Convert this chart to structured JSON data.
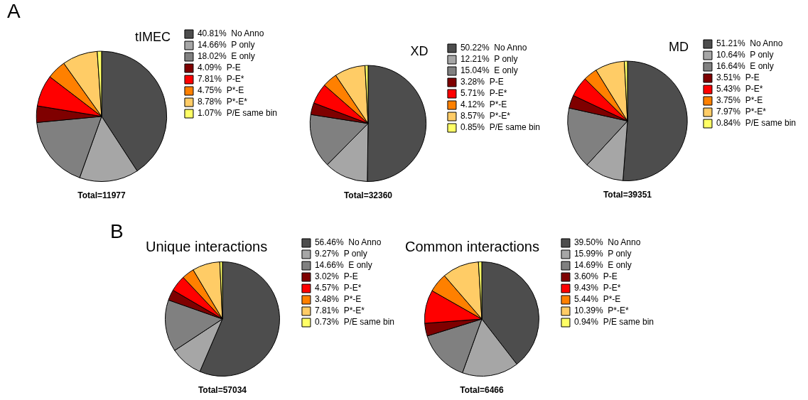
{
  "chart_data": [
    {
      "type": "pie",
      "title": "tIMEC",
      "categories": [
        "No Anno",
        "P only",
        "E only",
        "P-E",
        "P-E*",
        "P*-E",
        "P*-E*",
        "P/E same bin"
      ],
      "values": [
        40.81,
        14.66,
        18.02,
        4.09,
        7.81,
        4.75,
        8.78,
        1.07
      ],
      "value_labels": [
        "40.81%",
        "14.66%",
        "18.02%",
        "4.09%",
        "7.81%",
        "4.75%",
        "8.78%",
        "1.07%"
      ],
      "colors": [
        "#4d4d4d",
        "#a6a6a6",
        "#808080",
        "#7f0000",
        "#ff0000",
        "#ff8000",
        "#ffcc66",
        "#ffff66"
      ],
      "legend": "right",
      "annotations": [
        "A",
        "Total=11977"
      ]
    },
    {
      "type": "pie",
      "title": "XD",
      "categories": [
        "No Anno",
        "P only",
        "E only",
        "P-E",
        "P-E*",
        "P*-E",
        "P*-E*",
        "P/E same bin"
      ],
      "values": [
        50.22,
        12.21,
        15.04,
        3.28,
        5.71,
        4.12,
        8.57,
        0.85
      ],
      "value_labels": [
        "50.22%",
        "12.21%",
        "15.04%",
        "3.28%",
        "5.71%",
        "4.12%",
        "8.57%",
        "0.85%"
      ],
      "colors": [
        "#4d4d4d",
        "#a6a6a6",
        "#808080",
        "#7f0000",
        "#ff0000",
        "#ff8000",
        "#ffcc66",
        "#ffff66"
      ],
      "legend": "right",
      "annotations": [
        "Total=32360"
      ]
    },
    {
      "type": "pie",
      "title": "MD",
      "categories": [
        "No Anno",
        "P only",
        "E only",
        "P-E",
        "P-E*",
        "P*-E",
        "P*-E*",
        "P/E same bin"
      ],
      "values": [
        51.21,
        10.64,
        16.64,
        3.51,
        5.43,
        3.75,
        7.97,
        0.84
      ],
      "value_labels": [
        "51.21%",
        "10.64%",
        "16.64%",
        "3.51%",
        "5.43%",
        "3.75%",
        "7.97%",
        "0.84%"
      ],
      "colors": [
        "#4d4d4d",
        "#a6a6a6",
        "#808080",
        "#7f0000",
        "#ff0000",
        "#ff8000",
        "#ffcc66",
        "#ffff66"
      ],
      "legend": "right",
      "annotations": [
        "Total=39351"
      ]
    },
    {
      "type": "pie",
      "title": "Unique interactions",
      "categories": [
        "No Anno",
        "P only",
        "E only",
        "P-E",
        "P-E*",
        "P*-E",
        "P*-E*",
        "P/E same bin"
      ],
      "values": [
        56.46,
        9.27,
        14.66,
        3.02,
        4.57,
        3.48,
        7.81,
        0.73
      ],
      "value_labels": [
        "56.46%",
        "9.27%",
        "14.66%",
        "3.02%",
        "4.57%",
        "3.48%",
        "7.81%",
        "0.73%"
      ],
      "colors": [
        "#4d4d4d",
        "#a6a6a6",
        "#808080",
        "#7f0000",
        "#ff0000",
        "#ff8000",
        "#ffcc66",
        "#ffff66"
      ],
      "legend": "right",
      "annotations": [
        "B",
        "Total=57034"
      ]
    },
    {
      "type": "pie",
      "title": "Common interactions",
      "categories": [
        "No Anno",
        "P only",
        "E only",
        "P-E",
        "P-E*",
        "P*-E",
        "P*-E*",
        "P/E same bin"
      ],
      "values": [
        39.5,
        15.99,
        14.69,
        3.6,
        9.43,
        5.44,
        10.39,
        0.94
      ],
      "value_labels": [
        "39.50%",
        "15.99%",
        "14.69%",
        "3.60%",
        "9.43%",
        "5.44%",
        "10.39%",
        "0.94%"
      ],
      "colors": [
        "#4d4d4d",
        "#a6a6a6",
        "#808080",
        "#7f0000",
        "#ff0000",
        "#ff8000",
        "#ffcc66",
        "#ffff66"
      ],
      "legend": "right",
      "annotations": [
        "Total=6466"
      ]
    }
  ]
}
